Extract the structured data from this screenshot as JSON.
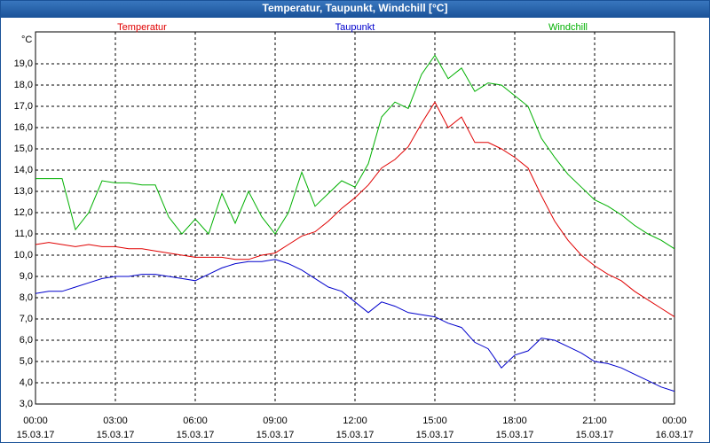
{
  "chart_data": {
    "type": "line",
    "title": "Temperatur, Taupunkt, Windchill [°C]",
    "y_unit": "°C",
    "x": [
      0,
      0.5,
      1,
      1.5,
      2,
      2.5,
      3,
      3.5,
      4,
      4.5,
      5,
      5.5,
      6,
      6.5,
      7,
      7.5,
      8,
      8.5,
      9,
      9.5,
      10,
      10.5,
      11,
      11.5,
      12,
      12.5,
      13,
      13.5,
      14,
      14.5,
      15,
      15.5,
      16,
      16.5,
      17,
      17.5,
      18,
      18.5,
      19,
      19.5,
      20,
      20.5,
      21,
      21.5,
      22,
      22.5,
      23,
      23.5,
      24
    ],
    "series": [
      {
        "name": "Temperatur",
        "color": "#e00000",
        "values": [
          10.5,
          10.6,
          10.5,
          10.4,
          10.5,
          10.4,
          10.4,
          10.3,
          10.3,
          10.2,
          10.1,
          10.0,
          9.9,
          9.9,
          9.9,
          9.8,
          9.8,
          10.0,
          10.1,
          10.5,
          10.9,
          11.1,
          11.6,
          12.2,
          12.7,
          13.3,
          14.1,
          14.5,
          15.1,
          16.2,
          17.2,
          16.0,
          16.5,
          15.3,
          15.3,
          15.0,
          14.6,
          14.1,
          12.8,
          11.6,
          10.7,
          10.0,
          9.5,
          9.1,
          8.8,
          8.3,
          7.9,
          7.5,
          7.1
        ]
      },
      {
        "name": "Taupunkt",
        "color": "#0000cc",
        "values": [
          8.2,
          8.3,
          8.3,
          8.5,
          8.7,
          8.9,
          9.0,
          9.0,
          9.1,
          9.1,
          9.0,
          8.9,
          8.8,
          9.1,
          9.4,
          9.6,
          9.7,
          9.7,
          9.8,
          9.6,
          9.3,
          8.9,
          8.5,
          8.3,
          7.8,
          7.3,
          7.8,
          7.6,
          7.3,
          7.2,
          7.1,
          6.8,
          6.6,
          5.9,
          5.6,
          4.7,
          5.3,
          5.5,
          6.1,
          6.0,
          5.7,
          5.4,
          5.0,
          4.9,
          4.7,
          4.4,
          4.1,
          3.8,
          3.6
        ]
      },
      {
        "name": "Windchill",
        "color": "#00b000",
        "values": [
          13.6,
          13.6,
          13.6,
          11.2,
          12.0,
          13.5,
          13.4,
          13.4,
          13.3,
          13.3,
          11.8,
          11.0,
          11.7,
          11.0,
          12.9,
          11.5,
          13.0,
          11.8,
          11.0,
          12.0,
          13.9,
          12.3,
          12.9,
          13.5,
          13.2,
          14.3,
          16.5,
          17.2,
          16.9,
          18.5,
          19.4,
          18.3,
          18.8,
          17.7,
          18.1,
          18.0,
          17.5,
          17.0,
          15.5,
          14.6,
          13.8,
          13.2,
          12.6,
          12.3,
          11.9,
          11.4,
          11.0,
          10.7,
          10.3
        ]
      }
    ],
    "xlim": [
      0,
      24
    ],
    "xticks": [
      {
        "value": 0,
        "label": "00:00",
        "date": "15.03.17"
      },
      {
        "value": 3,
        "label": "03:00",
        "date": "15.03.17"
      },
      {
        "value": 6,
        "label": "06:00",
        "date": "15.03.17"
      },
      {
        "value": 9,
        "label": "09:00",
        "date": "15.03.17"
      },
      {
        "value": 12,
        "label": "12:00",
        "date": "15.03.17"
      },
      {
        "value": 15,
        "label": "15:00",
        "date": "15.03.17"
      },
      {
        "value": 18,
        "label": "18:00",
        "date": "15.03.17"
      },
      {
        "value": 21,
        "label": "21:00",
        "date": "15.03.17"
      },
      {
        "value": 24,
        "label": "00:00",
        "date": "16.03.17"
      }
    ],
    "ylim": [
      3,
      20.5
    ],
    "yticks": [
      {
        "value": 3,
        "label": "3,0"
      },
      {
        "value": 4,
        "label": "4,0"
      },
      {
        "value": 5,
        "label": "5,0"
      },
      {
        "value": 6,
        "label": "6,0"
      },
      {
        "value": 7,
        "label": "7,0"
      },
      {
        "value": 8,
        "label": "8,0"
      },
      {
        "value": 9,
        "label": "9,0"
      },
      {
        "value": 10,
        "label": "10,0"
      },
      {
        "value": 11,
        "label": "11,0"
      },
      {
        "value": 12,
        "label": "12,0"
      },
      {
        "value": 13,
        "label": "13,0"
      },
      {
        "value": 14,
        "label": "14,0"
      },
      {
        "value": 15,
        "label": "15,0"
      },
      {
        "value": 16,
        "label": "16,0"
      },
      {
        "value": 17,
        "label": "17,0"
      },
      {
        "value": 18,
        "label": "18,0"
      },
      {
        "value": 19,
        "label": "19,0"
      }
    ],
    "grid": true
  }
}
